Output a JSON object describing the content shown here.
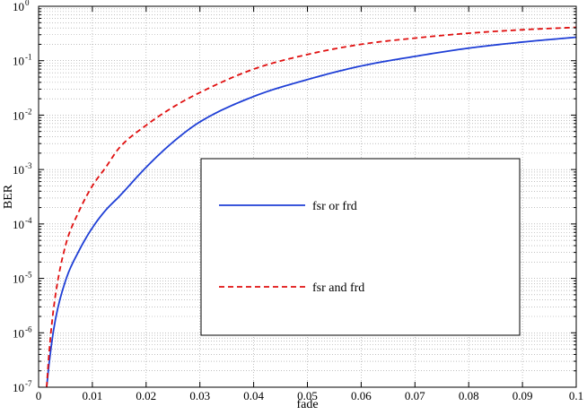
{
  "chart_data": {
    "type": "line",
    "title": "",
    "xlabel": "fade",
    "ylabel": "BER",
    "xlim": [
      0,
      0.1
    ],
    "ylim": [
      1e-07,
      1
    ],
    "yscale": "log",
    "grid": true,
    "legend_placement": "center",
    "x_ticks": [
      "0",
      "0.01",
      "0.02",
      "0.03",
      "0.04",
      "0.05",
      "0.06",
      "0.07",
      "0.08",
      "0.09",
      "0.1"
    ],
    "y_ticks": [
      {
        "base": "10",
        "exp": "0"
      },
      {
        "base": "10",
        "exp": "-1"
      },
      {
        "base": "10",
        "exp": "-2"
      },
      {
        "base": "10",
        "exp": "-3"
      },
      {
        "base": "10",
        "exp": "-4"
      },
      {
        "base": "10",
        "exp": "-5"
      },
      {
        "base": "10",
        "exp": "-6"
      },
      {
        "base": "10",
        "exp": "-7"
      }
    ],
    "series": [
      {
        "name": "fsr or frd",
        "color": "#1f3fd6",
        "style": "solid",
        "x": [
          0.0015,
          0.002,
          0.003,
          0.005,
          0.0075,
          0.01,
          0.0125,
          0.015,
          0.02,
          0.025,
          0.03,
          0.04,
          0.05,
          0.06,
          0.07,
          0.08,
          0.09,
          0.1
        ],
        "y": [
          1e-07,
          3e-07,
          1.5e-06,
          9e-06,
          3.2e-05,
          8.5e-05,
          0.00018,
          0.00032,
          0.0011,
          0.0032,
          0.0075,
          0.022,
          0.045,
          0.08,
          0.12,
          0.17,
          0.22,
          0.27
        ]
      },
      {
        "name": "fsr and frd",
        "color": "#e01010",
        "style": "dashed",
        "x": [
          0.0015,
          0.002,
          0.003,
          0.005,
          0.0075,
          0.01,
          0.0125,
          0.015,
          0.02,
          0.025,
          0.03,
          0.04,
          0.05,
          0.06,
          0.07,
          0.08,
          0.09,
          0.1
        ],
        "y": [
          1e-07,
          5e-07,
          4e-06,
          4e-05,
          0.00017,
          0.0005,
          0.0011,
          0.0025,
          0.0065,
          0.014,
          0.026,
          0.07,
          0.13,
          0.2,
          0.26,
          0.32,
          0.37,
          0.41
        ]
      }
    ]
  }
}
